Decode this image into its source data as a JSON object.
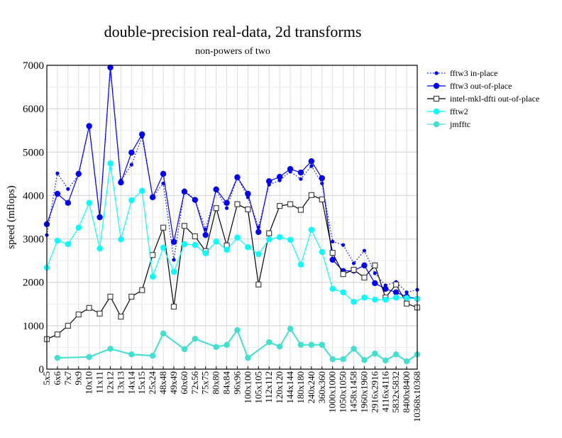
{
  "chart_data": {
    "type": "line",
    "title": "double-precision real-data, 2d transforms",
    "subtitle": "non-powers of two",
    "xlabel": "",
    "ylabel": "speed (mflops)",
    "ylim": [
      0,
      7000
    ],
    "yticks": [
      0,
      1000,
      2000,
      3000,
      4000,
      5000,
      6000,
      7000
    ],
    "grid": true,
    "legend_position": "right, outside",
    "categories": [
      "5x5",
      "6x6",
      "7x7",
      "9x9",
      "10x10",
      "11x11",
      "12x12",
      "13x13",
      "14x14",
      "15x15",
      "25x24",
      "48x48",
      "49x49",
      "60x60",
      "72x56",
      "75x75",
      "80x80",
      "84x84",
      "96x96",
      "100x100",
      "105x105",
      "112x112",
      "120x120",
      "144x144",
      "180x180",
      "240x240",
      "360x360",
      "1000x1000",
      "1050x1050",
      "1458x1458",
      "1960x1960",
      "2916x2916",
      "4116x4116",
      "5832x5832",
      "8400x8400",
      "10368x10368"
    ],
    "series": [
      {
        "name": "fftw3 in-place",
        "color": "#0000ff",
        "style": "dotted",
        "marker": "small-dot",
        "values": [
          3090,
          4510,
          4150,
          4470,
          5600,
          3500,
          6950,
          4350,
          4710,
          5350,
          3970,
          4280,
          2520,
          4120,
          3900,
          3220,
          4120,
          3710,
          4420,
          3960,
          3270,
          4250,
          4350,
          4550,
          4380,
          4680,
          4280,
          2940,
          2860,
          2440,
          2730,
          2210,
          1930,
          2010,
          1770,
          1830
        ]
      },
      {
        "name": "fftw3 out-of-place",
        "color": "#0000ff",
        "style": "solid",
        "marker": "dot",
        "values": [
          3340,
          4040,
          3830,
          4500,
          5600,
          3500,
          6950,
          4300,
          4990,
          5410,
          3960,
          4500,
          2930,
          4090,
          3900,
          3090,
          4140,
          3830,
          4420,
          4040,
          3160,
          4330,
          4430,
          4610,
          4530,
          4790,
          4400,
          2520,
          2260,
          2270,
          2390,
          1980,
          1850,
          1770,
          1670,
          1620
        ]
      },
      {
        "name": "intel-mkl-dfti out-of-place",
        "color": "#000000",
        "style": "solid",
        "marker": "square",
        "values": [
          690,
          800,
          1000,
          1260,
          1410,
          1280,
          1670,
          1210,
          1670,
          1820,
          2630,
          3260,
          1440,
          3300,
          3060,
          2720,
          3710,
          2850,
          3800,
          3680,
          1950,
          3130,
          3760,
          3800,
          3670,
          4010,
          3910,
          2680,
          2190,
          2290,
          2110,
          2390,
          1650,
          1950,
          1510,
          1420
        ]
      },
      {
        "name": "fftw2",
        "color": "#00ffff",
        "style": "solid",
        "marker": "dot",
        "values": [
          2340,
          2960,
          2880,
          3260,
          3830,
          2780,
          4740,
          2990,
          3890,
          4110,
          2130,
          2800,
          2240,
          2880,
          2860,
          2670,
          2940,
          2750,
          3030,
          2810,
          2650,
          2990,
          3040,
          2980,
          2410,
          3210,
          2700,
          1850,
          1770,
          1550,
          1650,
          1600,
          1600,
          1650,
          1640,
          1620
        ]
      },
      {
        "name": "jmfftc",
        "color": "#40e0d0",
        "style": "solid",
        "marker": "dot",
        "values": [
          null,
          260,
          null,
          null,
          280,
          null,
          470,
          null,
          340,
          null,
          310,
          820,
          null,
          460,
          700,
          null,
          510,
          560,
          900,
          260,
          null,
          620,
          520,
          930,
          560,
          560,
          560,
          230,
          230,
          470,
          210,
          360,
          200,
          340,
          180,
          340
        ]
      }
    ]
  }
}
